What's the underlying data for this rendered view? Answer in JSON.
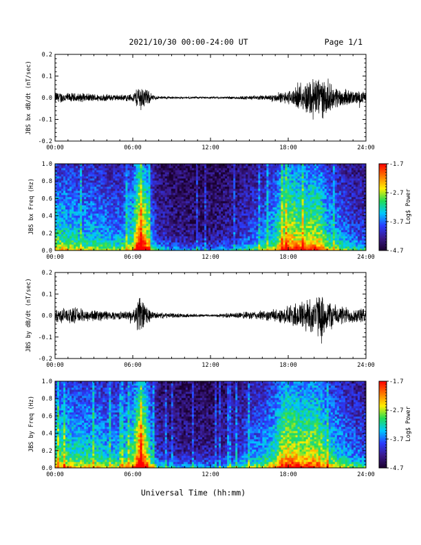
{
  "header": {
    "date_range": "2021/10/30  00:00-24:00 UT",
    "page": "Page 1/1"
  },
  "footer": {
    "xlabel": "Universal Time (hh:mm)"
  },
  "colors": {
    "colorbar_stops": [
      "#1a0030",
      "#3a1a8a",
      "#2a3cff",
      "#00c8ff",
      "#22dd55",
      "#ffee00",
      "#ff7700",
      "#ff0000"
    ],
    "trace": "#000000",
    "background_spectrogram": "#230f4c"
  },
  "chart_data": [
    {
      "type": "line",
      "title": "",
      "ylabel": "JBS bx dB/dt (nT/sec)",
      "xlabel": "",
      "xlim": [
        0,
        24
      ],
      "ylim": [
        -0.2,
        0.2
      ],
      "x_ticks": [
        "00:00",
        "06:00",
        "12:00",
        "18:00",
        "24:00"
      ],
      "y_ticks": [
        "-0.2",
        "-0.1",
        "0.0",
        "0.1",
        "0.2"
      ],
      "envelope": {
        "x": [
          0,
          1,
          2,
          3,
          4,
          5,
          6,
          6.5,
          7,
          7.5,
          8,
          9,
          10,
          11,
          12,
          13,
          14,
          15,
          16,
          17,
          18,
          19,
          19.5,
          20,
          20.5,
          21,
          21.5,
          22,
          23,
          24
        ],
        "amplitude": [
          0.03,
          0.025,
          0.022,
          0.02,
          0.018,
          0.015,
          0.02,
          0.07,
          0.05,
          0.015,
          0.008,
          0.006,
          0.005,
          0.005,
          0.005,
          0.006,
          0.008,
          0.01,
          0.012,
          0.02,
          0.035,
          0.06,
          0.09,
          0.12,
          0.11,
          0.08,
          0.06,
          0.05,
          0.035,
          0.03
        ]
      }
    },
    {
      "type": "heatmap",
      "title": "",
      "ylabel": "JBS bx Freq (Hz)",
      "colorbar_label": "Log$ Power",
      "xlim": [
        0,
        24
      ],
      "ylim": [
        0,
        1
      ],
      "clim": [
        -4.7,
        -1.7
      ],
      "x_ticks": [
        "00:00",
        "06:00",
        "12:00",
        "18:00",
        "24:00"
      ],
      "y_ticks": [
        "0.0",
        "0.2",
        "0.4",
        "0.6",
        "0.8",
        "1.0"
      ],
      "colorbar_ticks": [
        "-1.7",
        "-2.7",
        "-3.7",
        "-4.7"
      ],
      "activity": {
        "x": [
          0,
          1,
          2,
          3,
          4,
          5,
          6,
          6.5,
          7,
          7.5,
          8,
          9,
          10,
          11,
          12,
          13,
          14,
          15,
          16,
          17,
          17.5,
          18,
          19,
          20,
          20.5,
          21,
          22,
          23,
          24
        ],
        "level": [
          0.55,
          0.5,
          0.45,
          0.45,
          0.4,
          0.38,
          0.55,
          0.95,
          0.8,
          0.35,
          0.2,
          0.15,
          0.12,
          0.12,
          0.12,
          0.15,
          0.2,
          0.28,
          0.35,
          0.5,
          0.7,
          0.78,
          0.7,
          0.72,
          0.68,
          0.5,
          0.4,
          0.3,
          0.25
        ]
      }
    },
    {
      "type": "line",
      "title": "",
      "ylabel": "JBS by dB/dt (nT/sec)",
      "xlabel": "",
      "xlim": [
        0,
        24
      ],
      "ylim": [
        -0.2,
        0.2
      ],
      "x_ticks": [
        "00:00",
        "06:00",
        "12:00",
        "18:00",
        "24:00"
      ],
      "y_ticks": [
        "-0.2",
        "-0.1",
        "0.0",
        "0.1",
        "0.2"
      ],
      "envelope": {
        "x": [
          0,
          1,
          2,
          3,
          4,
          5,
          6,
          6.5,
          7,
          7.5,
          8,
          9,
          10,
          11,
          12,
          13,
          14,
          15,
          16,
          17,
          18,
          19,
          20,
          20.5,
          21,
          21.5,
          22,
          23,
          24
        ],
        "amplitude": [
          0.035,
          0.04,
          0.035,
          0.03,
          0.025,
          0.02,
          0.025,
          0.1,
          0.06,
          0.02,
          0.015,
          0.012,
          0.01,
          0.008,
          0.006,
          0.01,
          0.015,
          0.02,
          0.025,
          0.03,
          0.05,
          0.08,
          0.1,
          0.11,
          0.09,
          0.06,
          0.05,
          0.04,
          0.035
        ]
      }
    },
    {
      "type": "heatmap",
      "title": "",
      "ylabel": "JBS by Freq (Hz)",
      "colorbar_label": "Log$ Power",
      "xlim": [
        0,
        24
      ],
      "ylim": [
        0,
        1
      ],
      "clim": [
        -4.7,
        -1.7
      ],
      "x_ticks": [
        "00:00",
        "06:00",
        "12:00",
        "18:00",
        "24:00"
      ],
      "y_ticks": [
        "0.0",
        "0.2",
        "0.4",
        "0.6",
        "0.8",
        "1.0"
      ],
      "colorbar_ticks": [
        "-1.7",
        "-2.7",
        "-3.7",
        "-4.7"
      ],
      "activity": {
        "x": [
          0,
          1,
          2,
          3,
          4,
          5,
          6,
          6.5,
          7,
          7.5,
          8,
          9,
          10,
          11,
          12,
          13,
          14,
          15,
          16,
          17,
          17.5,
          18,
          19,
          20,
          20.5,
          21,
          22,
          23,
          24
        ],
        "level": [
          0.6,
          0.55,
          0.5,
          0.5,
          0.45,
          0.42,
          0.6,
          0.95,
          0.8,
          0.4,
          0.22,
          0.18,
          0.15,
          0.15,
          0.15,
          0.18,
          0.25,
          0.35,
          0.42,
          0.55,
          0.75,
          0.8,
          0.72,
          0.75,
          0.7,
          0.55,
          0.45,
          0.35,
          0.3
        ]
      }
    }
  ]
}
